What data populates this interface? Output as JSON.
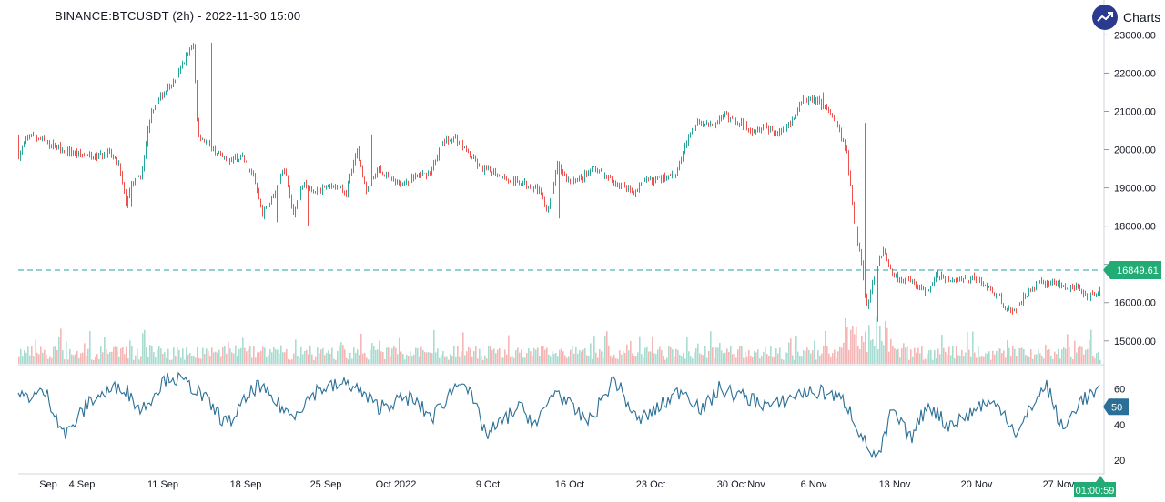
{
  "header": {
    "title": "BINANCE:BTCUSDT (2h) - 2022-11-30 15:00"
  },
  "brand": {
    "label": "Charts p",
    "icon": "trend-up-icon"
  },
  "colors": {
    "up": "#26a69a",
    "down": "#ef5350",
    "up_vol": "#a8dcd0",
    "down_vol": "#f5b7b5",
    "rsi": "#2a6f97",
    "price_line": "#26a69a",
    "price_tag": "#22ab74"
  },
  "chart_data": {
    "type": "candlestick",
    "price_axis": {
      "ticks": [
        "23000.00",
        "22000.00",
        "21000.00",
        "20000.00",
        "19000.00",
        "18000.00",
        "17000.00",
        "16000.00",
        "15000.00"
      ],
      "range": [
        14400,
        23200
      ]
    },
    "time_axis": {
      "ticks": [
        "Sep",
        "4 Sep",
        "11 Sep",
        "18 Sep",
        "25 Sep",
        "Oct 2022",
        "9 Oct",
        "16 Oct",
        "23 Oct",
        "30 Oct",
        "Nov",
        "6 Nov",
        "13 Nov",
        "20 Nov",
        "27 Nov"
      ]
    },
    "price_path": [
      {
        "t": 0,
        "p": 19850
      },
      {
        "t": 12,
        "p": 20400
      },
      {
        "t": 35,
        "p": 20150
      },
      {
        "t": 55,
        "p": 19950
      },
      {
        "t": 80,
        "p": 19800
      },
      {
        "t": 100,
        "p": 19900
      },
      {
        "t": 110,
        "p": 19600
      },
      {
        "t": 118,
        "p": 18600
      },
      {
        "t": 124,
        "p": 19100
      },
      {
        "t": 135,
        "p": 19300
      },
      {
        "t": 145,
        "p": 21000
      },
      {
        "t": 160,
        "p": 21500
      },
      {
        "t": 172,
        "p": 21800
      },
      {
        "t": 185,
        "p": 22500
      },
      {
        "t": 192,
        "p": 22700
      },
      {
        "t": 197,
        "p": 20400
      },
      {
        "t": 210,
        "p": 20100
      },
      {
        "t": 228,
        "p": 19700
      },
      {
        "t": 246,
        "p": 19800
      },
      {
        "t": 258,
        "p": 19300
      },
      {
        "t": 268,
        "p": 18300
      },
      {
        "t": 280,
        "p": 18800
      },
      {
        "t": 292,
        "p": 19500
      },
      {
        "t": 302,
        "p": 18300
      },
      {
        "t": 312,
        "p": 19100
      },
      {
        "t": 324,
        "p": 18900
      },
      {
        "t": 336,
        "p": 19000
      },
      {
        "t": 348,
        "p": 19100
      },
      {
        "t": 360,
        "p": 18900
      },
      {
        "t": 372,
        "p": 20000
      },
      {
        "t": 382,
        "p": 18900
      },
      {
        "t": 396,
        "p": 19500
      },
      {
        "t": 410,
        "p": 19200
      },
      {
        "t": 422,
        "p": 19100
      },
      {
        "t": 436,
        "p": 19300
      },
      {
        "t": 452,
        "p": 19400
      },
      {
        "t": 466,
        "p": 20200
      },
      {
        "t": 480,
        "p": 20300
      },
      {
        "t": 494,
        "p": 19900
      },
      {
        "t": 508,
        "p": 19500
      },
      {
        "t": 524,
        "p": 19400
      },
      {
        "t": 540,
        "p": 19200
      },
      {
        "t": 556,
        "p": 19100
      },
      {
        "t": 570,
        "p": 19000
      },
      {
        "t": 582,
        "p": 18400
      },
      {
        "t": 592,
        "p": 19600
      },
      {
        "t": 604,
        "p": 19200
      },
      {
        "t": 618,
        "p": 19250
      },
      {
        "t": 632,
        "p": 19500
      },
      {
        "t": 646,
        "p": 19250
      },
      {
        "t": 660,
        "p": 19100
      },
      {
        "t": 676,
        "p": 18900
      },
      {
        "t": 690,
        "p": 19200
      },
      {
        "t": 706,
        "p": 19250
      },
      {
        "t": 722,
        "p": 19400
      },
      {
        "t": 734,
        "p": 20200
      },
      {
        "t": 746,
        "p": 20800
      },
      {
        "t": 760,
        "p": 20600
      },
      {
        "t": 776,
        "p": 20900
      },
      {
        "t": 792,
        "p": 20700
      },
      {
        "t": 808,
        "p": 20500
      },
      {
        "t": 820,
        "p": 20600
      },
      {
        "t": 834,
        "p": 20400
      },
      {
        "t": 848,
        "p": 20700
      },
      {
        "t": 862,
        "p": 21300
      },
      {
        "t": 876,
        "p": 21300
      },
      {
        "t": 890,
        "p": 21000
      },
      {
        "t": 900,
        "p": 20600
      },
      {
        "t": 910,
        "p": 19900
      },
      {
        "t": 918,
        "p": 18200
      },
      {
        "t": 926,
        "p": 17000
      },
      {
        "t": 932,
        "p": 15900
      },
      {
        "t": 940,
        "p": 16700
      },
      {
        "t": 950,
        "p": 17400
      },
      {
        "t": 960,
        "p": 16700
      },
      {
        "t": 972,
        "p": 16600
      },
      {
        "t": 984,
        "p": 16500
      },
      {
        "t": 996,
        "p": 16200
      },
      {
        "t": 1008,
        "p": 16700
      },
      {
        "t": 1022,
        "p": 16600
      },
      {
        "t": 1036,
        "p": 16600
      },
      {
        "t": 1050,
        "p": 16650
      },
      {
        "t": 1064,
        "p": 16400
      },
      {
        "t": 1078,
        "p": 16100
      },
      {
        "t": 1092,
        "p": 15700
      },
      {
        "t": 1106,
        "p": 16200
      },
      {
        "t": 1120,
        "p": 16500
      },
      {
        "t": 1134,
        "p": 16550
      },
      {
        "t": 1148,
        "p": 16450
      },
      {
        "t": 1162,
        "p": 16400
      },
      {
        "t": 1176,
        "p": 16150
      },
      {
        "t": 1190,
        "p": 16400
      },
      {
        "t": 1202,
        "p": 16850
      },
      {
        "t": 1210,
        "p": 16849.61
      }
    ],
    "spikes": [
      {
        "t": 124,
        "low": 18500
      },
      {
        "t": 212,
        "high": 22800
      },
      {
        "t": 284,
        "low": 18100
      },
      {
        "t": 318,
        "low": 18000
      },
      {
        "t": 388,
        "high": 20400
      },
      {
        "t": 594,
        "low": 18200
      },
      {
        "t": 884,
        "high": 21500
      },
      {
        "t": 930,
        "high": 20700
      },
      {
        "t": 944,
        "low": 15500
      },
      {
        "t": 1098,
        "low": 15400
      },
      {
        "t": 1203,
        "high": 17200
      }
    ],
    "current_price": {
      "value": 16849.61,
      "label": "16849.61"
    },
    "rsi": {
      "ticks": [
        "60",
        "50",
        "40",
        "20"
      ],
      "range": [
        15,
        70
      ],
      "current": "50",
      "path": [
        {
          "t": 0,
          "v": 55
        },
        {
          "t": 30,
          "v": 58
        },
        {
          "t": 52,
          "v": 34
        },
        {
          "t": 80,
          "v": 54
        },
        {
          "t": 115,
          "v": 62
        },
        {
          "t": 135,
          "v": 48
        },
        {
          "t": 165,
          "v": 68
        },
        {
          "t": 195,
          "v": 60
        },
        {
          "t": 230,
          "v": 40
        },
        {
          "t": 262,
          "v": 62
        },
        {
          "t": 300,
          "v": 45
        },
        {
          "t": 330,
          "v": 60
        },
        {
          "t": 365,
          "v": 63
        },
        {
          "t": 395,
          "v": 50
        },
        {
          "t": 430,
          "v": 55
        },
        {
          "t": 455,
          "v": 44
        },
        {
          "t": 488,
          "v": 67
        },
        {
          "t": 515,
          "v": 34
        },
        {
          "t": 550,
          "v": 50
        },
        {
          "t": 570,
          "v": 40
        },
        {
          "t": 590,
          "v": 60
        },
        {
          "t": 610,
          "v": 48
        },
        {
          "t": 628,
          "v": 42
        },
        {
          "t": 655,
          "v": 66
        },
        {
          "t": 680,
          "v": 42
        },
        {
          "t": 700,
          "v": 48
        },
        {
          "t": 730,
          "v": 60
        },
        {
          "t": 752,
          "v": 48
        },
        {
          "t": 770,
          "v": 60
        },
        {
          "t": 800,
          "v": 55
        },
        {
          "t": 830,
          "v": 50
        },
        {
          "t": 860,
          "v": 58
        },
        {
          "t": 890,
          "v": 58
        },
        {
          "t": 910,
          "v": 52
        },
        {
          "t": 932,
          "v": 28
        },
        {
          "t": 945,
          "v": 20
        },
        {
          "t": 960,
          "v": 48
        },
        {
          "t": 980,
          "v": 32
        },
        {
          "t": 1000,
          "v": 52
        },
        {
          "t": 1020,
          "v": 40
        },
        {
          "t": 1040,
          "v": 44
        },
        {
          "t": 1060,
          "v": 52
        },
        {
          "t": 1080,
          "v": 50
        },
        {
          "t": 1098,
          "v": 34
        },
        {
          "t": 1115,
          "v": 52
        },
        {
          "t": 1130,
          "v": 62
        },
        {
          "t": 1148,
          "v": 36
        },
        {
          "t": 1165,
          "v": 53
        },
        {
          "t": 1185,
          "v": 58
        },
        {
          "t": 1205,
          "v": 56
        },
        {
          "t": 1210,
          "v": 50
        }
      ]
    }
  },
  "countdown": "01:00:59"
}
